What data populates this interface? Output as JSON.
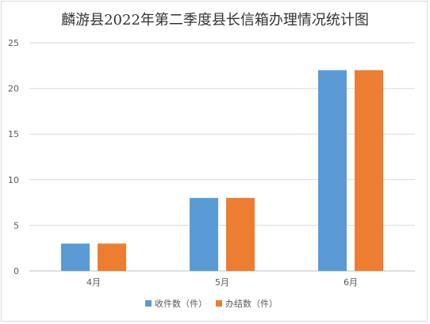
{
  "chart_data": {
    "type": "bar",
    "title": "麟游县2022年第二季度县长信箱办理情况统计图",
    "categories": [
      "4月",
      "5月",
      "6月"
    ],
    "series": [
      {
        "name": "收件数（件）",
        "values": [
          3,
          8,
          22
        ],
        "color": "#5B9BD5"
      },
      {
        "name": "办结数（件）",
        "values": [
          3,
          8,
          22
        ],
        "color": "#ED7D31"
      }
    ],
    "y_ticks": [
      0,
      5,
      10,
      15,
      20,
      25
    ],
    "ylim": [
      0,
      25
    ],
    "xlabel": "",
    "ylabel": "",
    "grid": true,
    "legend_position": "bottom"
  }
}
